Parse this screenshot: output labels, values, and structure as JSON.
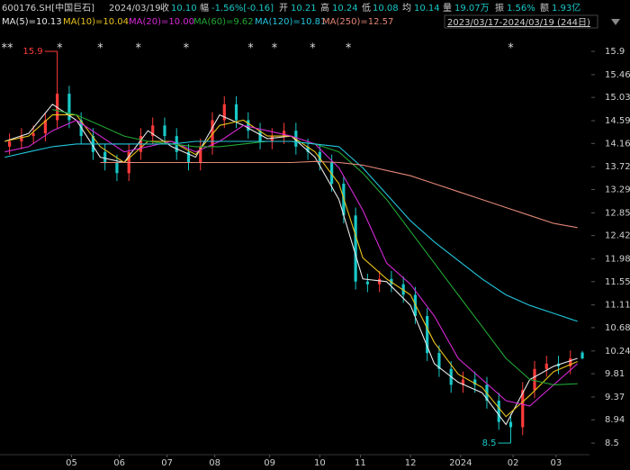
{
  "header": {
    "symbol": "600176.SH[中国巨石]",
    "date": "2024/03/19",
    "fields": [
      {
        "label": "收",
        "value": "10.10"
      },
      {
        "label": "幅",
        "value": "-1.56%[-0.16]"
      },
      {
        "label": "开",
        "value": "10.21"
      },
      {
        "label": "高",
        "value": "10.24"
      },
      {
        "label": "低",
        "value": "10.08"
      },
      {
        "label": "均",
        "value": "10.14"
      },
      {
        "label": "量",
        "value": "19.07万"
      },
      {
        "label": "振",
        "value": "1.56%"
      },
      {
        "label": "额",
        "value": "1.93亿"
      }
    ],
    "range": "2023/03/17-2024/03/19 (244日)"
  },
  "chart_data": {
    "type": "candlestick",
    "up_color": "#ff3b3b",
    "down_color": "#19c8c8",
    "candles": {
      "x": [
        2,
        7,
        12,
        17,
        22,
        27,
        32,
        37,
        42,
        47,
        52,
        57,
        62,
        67,
        72,
        77,
        82,
        87,
        92,
        97,
        102,
        107,
        112,
        117,
        122,
        127,
        132,
        137,
        142,
        147,
        152,
        157,
        162,
        167,
        172,
        177,
        182,
        187,
        192,
        197,
        202,
        207,
        212,
        217,
        222,
        227,
        232,
        237,
        242
      ],
      "open": [
        14.1,
        14.2,
        14.3,
        14.35,
        14.6,
        15.1,
        14.6,
        14.3,
        14.0,
        13.8,
        13.6,
        14.0,
        14.3,
        14.5,
        14.3,
        14.0,
        13.8,
        14.1,
        14.6,
        14.9,
        14.6,
        14.4,
        14.2,
        14.3,
        14.4,
        14.1,
        14.0,
        13.8,
        13.4,
        12.8,
        11.55,
        11.5,
        11.6,
        11.5,
        11.3,
        10.9,
        10.2,
        9.9,
        9.6,
        9.7,
        9.6,
        9.3,
        8.9,
        8.8,
        9.5,
        9.9,
        10.0,
        9.95,
        10.21
      ],
      "high": [
        14.35,
        14.45,
        14.5,
        14.75,
        15.9,
        15.25,
        14.75,
        14.45,
        14.15,
        13.95,
        14.15,
        14.45,
        14.65,
        14.65,
        14.45,
        14.15,
        14.25,
        14.75,
        15.05,
        15.05,
        14.75,
        14.55,
        14.45,
        14.55,
        14.55,
        14.25,
        14.15,
        13.95,
        13.55,
        12.95,
        11.7,
        11.75,
        11.75,
        11.65,
        11.45,
        11.05,
        10.35,
        10.05,
        9.85,
        9.85,
        9.75,
        9.45,
        9.05,
        9.65,
        10.05,
        10.15,
        10.15,
        10.25,
        10.24
      ],
      "low": [
        13.95,
        14.05,
        14.15,
        14.2,
        14.45,
        14.45,
        14.15,
        13.85,
        13.65,
        13.45,
        13.45,
        13.85,
        14.15,
        14.15,
        13.85,
        13.65,
        13.65,
        13.95,
        14.45,
        14.45,
        14.25,
        14.05,
        14.05,
        14.15,
        13.95,
        13.85,
        13.65,
        13.25,
        12.65,
        11.4,
        11.35,
        11.35,
        11.35,
        11.15,
        10.75,
        10.05,
        9.75,
        9.45,
        9.45,
        9.45,
        9.15,
        8.75,
        8.5,
        8.65,
        9.35,
        9.75,
        9.8,
        9.8,
        10.08
      ],
      "close": [
        14.2,
        14.3,
        14.35,
        14.6,
        15.1,
        14.6,
        14.3,
        14.0,
        13.8,
        13.6,
        14.0,
        14.3,
        14.5,
        14.3,
        14.0,
        13.8,
        14.1,
        14.6,
        14.9,
        14.6,
        14.4,
        14.2,
        14.3,
        14.4,
        14.1,
        14.0,
        13.8,
        13.4,
        12.8,
        11.55,
        11.5,
        11.6,
        11.5,
        11.3,
        10.9,
        10.2,
        9.9,
        9.6,
        9.7,
        9.6,
        9.3,
        8.9,
        8.8,
        9.5,
        9.9,
        10.0,
        9.95,
        10.1,
        10.1
      ]
    },
    "ma_x": [
      0,
      10,
      20,
      30,
      40,
      50,
      60,
      70,
      80,
      90,
      100,
      110,
      120,
      130,
      140,
      150,
      160,
      170,
      180,
      190,
      200,
      210,
      220,
      230,
      240
    ],
    "ma_series": [
      {
        "name": "MA(5)=10.13",
        "color": "#e8e8e8",
        "values": [
          14.2,
          14.35,
          14.9,
          14.6,
          13.9,
          13.8,
          14.4,
          14.1,
          13.9,
          14.7,
          14.5,
          14.25,
          14.3,
          13.9,
          13.1,
          11.6,
          11.55,
          11.1,
          10.0,
          9.65,
          9.45,
          8.85,
          9.7,
          9.95,
          10.1
        ]
      },
      {
        "name": "MA(10)=10.04",
        "color": "#e8c21c",
        "values": [
          14.2,
          14.3,
          14.7,
          14.7,
          14.1,
          13.8,
          14.2,
          14.2,
          13.95,
          14.5,
          14.6,
          14.3,
          14.3,
          14.0,
          13.4,
          12.0,
          11.6,
          11.3,
          10.4,
          9.8,
          9.55,
          9.0,
          9.4,
          9.85,
          10.04
        ]
      },
      {
        "name": "MA(20)=10.00",
        "color": "#d72ad7",
        "values": [
          14.0,
          14.1,
          14.4,
          14.6,
          14.3,
          14.0,
          14.1,
          14.2,
          14.0,
          14.2,
          14.5,
          14.4,
          14.3,
          14.15,
          13.7,
          12.9,
          11.9,
          11.5,
          10.9,
          10.1,
          9.7,
          9.3,
          9.2,
          9.6,
          10.0
        ]
      },
      {
        "name": "MA(60)=9.62",
        "color": "#22a632",
        "values": [
          null,
          null,
          14.8,
          14.7,
          14.5,
          14.3,
          14.2,
          14.15,
          14.1,
          14.1,
          14.15,
          14.2,
          14.2,
          14.15,
          14.0,
          13.6,
          13.1,
          12.5,
          11.9,
          11.3,
          10.7,
          10.1,
          9.7,
          9.6,
          9.62
        ]
      },
      {
        "name": "MA(120)=10.81",
        "color": "#22c6dc",
        "values": [
          13.9,
          14.0,
          14.1,
          14.15,
          14.15,
          14.15,
          14.15,
          14.15,
          14.2,
          14.2,
          14.2,
          14.2,
          14.2,
          14.15,
          14.1,
          13.7,
          13.2,
          12.7,
          12.3,
          11.95,
          11.6,
          11.3,
          11.1,
          10.95,
          10.8
        ]
      },
      {
        "name": "MA(250)=12.57",
        "color": "#e28676",
        "values": [
          null,
          null,
          null,
          null,
          13.8,
          13.8,
          13.8,
          13.8,
          13.8,
          13.8,
          13.8,
          13.8,
          13.8,
          13.82,
          13.8,
          13.75,
          13.65,
          13.55,
          13.4,
          13.25,
          13.1,
          12.95,
          12.8,
          12.65,
          12.57
        ]
      }
    ],
    "annotations": [
      {
        "x": 22,
        "value": 15.9,
        "color": "#ff3b3b"
      },
      {
        "x": 212,
        "value": 8.5,
        "color": "#19c8c8"
      }
    ],
    "event_markers": [
      {
        "x": 1,
        "label": "**"
      },
      {
        "x": 23,
        "label": "*"
      },
      {
        "x": 40,
        "label": "*"
      },
      {
        "x": 56,
        "label": "*"
      },
      {
        "x": 76,
        "label": "*"
      },
      {
        "x": 103,
        "label": "*"
      },
      {
        "x": 113,
        "label": "*"
      },
      {
        "x": 129,
        "label": "*"
      },
      {
        "x": 144,
        "label": "*"
      },
      {
        "x": 212,
        "label": "*"
      }
    ],
    "xlim": [
      -2,
      245
    ],
    "ylim": [
      8.28,
      16.19
    ],
    "yticks": [
      15.9,
      15.46,
      15.03,
      14.59,
      14.16,
      13.72,
      13.29,
      12.85,
      12.42,
      11.98,
      11.55,
      11.11,
      10.68,
      10.24,
      9.81,
      9.37,
      8.94,
      8.5
    ],
    "xticks": [
      {
        "value": 28,
        "label": "05"
      },
      {
        "value": 48,
        "label": "06"
      },
      {
        "value": 68,
        "label": "07"
      },
      {
        "value": 88,
        "label": "08"
      },
      {
        "value": 111,
        "label": "09"
      },
      {
        "value": 132,
        "label": "10"
      },
      {
        "value": 149,
        "label": "11"
      },
      {
        "value": 170,
        "label": "12"
      },
      {
        "value": 191,
        "label": "2024"
      },
      {
        "value": 213,
        "label": "02"
      },
      {
        "value": 231,
        "label": "03"
      }
    ]
  }
}
